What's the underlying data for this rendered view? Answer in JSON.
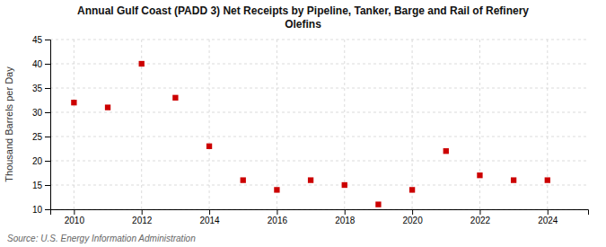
{
  "chart_data": {
    "type": "scatter",
    "title": "Annual Gulf Coast (PADD 3) Net Receipts by Pipeline, Tanker, Barge and Rail of Refinery\nOlefins",
    "ylabel": "Thousand Barrels per Day",
    "source": "Source: U.S. Energy Information Administration",
    "x": [
      2010,
      2011,
      2012,
      2013,
      2014,
      2015,
      2016,
      2017,
      2018,
      2019,
      2020,
      2021,
      2022,
      2023,
      2024
    ],
    "values": [
      32,
      31,
      40,
      33,
      23,
      16,
      14,
      16,
      15,
      11,
      14,
      22,
      17,
      16,
      16
    ],
    "color": "#cc0000",
    "marker": "square",
    "xlim": [
      2009.3,
      2025.2
    ],
    "xticks": [
      2010,
      2012,
      2014,
      2016,
      2018,
      2020,
      2022,
      2024
    ],
    "ylim": [
      10,
      45
    ],
    "yticks": [
      10,
      15,
      20,
      25,
      30,
      35,
      40,
      45
    ],
    "grid": true
  }
}
